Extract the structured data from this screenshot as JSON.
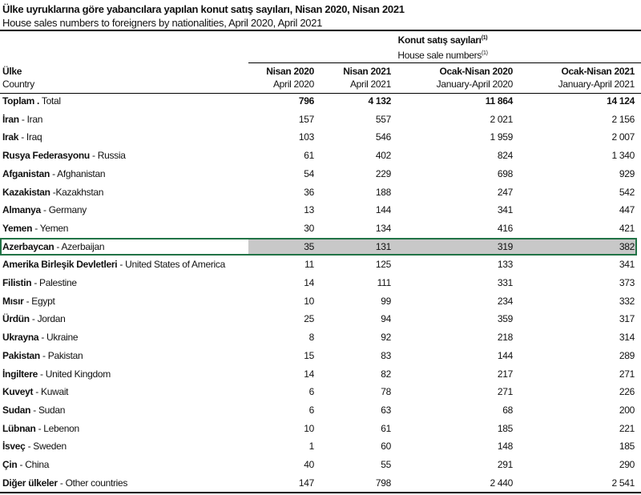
{
  "title": "Ülke uyruklarına göre yabancılara yapılan konut satış sayıları, Nisan 2020, Nisan 2021",
  "subtitle": "House sales numbers to foreigners by nationalities, April 2020, April 2021",
  "group_header": {
    "tr": "Konut satış sayıları",
    "en": "House sale numbers",
    "note": "(1)"
  },
  "columns": [
    {
      "tr": "Ülke",
      "en": "Country"
    },
    {
      "tr": "Nisan 2020",
      "en": "April 2020"
    },
    {
      "tr": "Nisan 2021",
      "en": "April 2021"
    },
    {
      "tr": "Ocak-Nisan 2020",
      "en": "January-April 2020"
    },
    {
      "tr": "Ocak-Nisan 2021",
      "en": "January-April 2021"
    }
  ],
  "selection_color": "#217346",
  "rows": [
    {
      "tr": "Toplam .",
      "en": "Total",
      "v": [
        "796",
        "4 132",
        "11 864",
        "14 124"
      ]
    },
    {
      "tr": "İran",
      "en": "- Iran",
      "v": [
        "157",
        "557",
        "2 021",
        "2 156"
      ]
    },
    {
      "tr": "Irak",
      "en": "- Iraq",
      "v": [
        "103",
        "546",
        "1 959",
        "2 007"
      ]
    },
    {
      "tr": "Rusya Federasyonu",
      "en": "- Russia",
      "v": [
        "61",
        "402",
        "824",
        "1 340"
      ]
    },
    {
      "tr": "Afganistan",
      "en": "- Afghanistan",
      "v": [
        "54",
        "229",
        "698",
        "929"
      ]
    },
    {
      "tr": "Kazakistan",
      "en": "-Kazakhstan",
      "v": [
        "36",
        "188",
        "247",
        "542"
      ]
    },
    {
      "tr": "Almanya",
      "en": "- Germany",
      "v": [
        "13",
        "144",
        "341",
        "447"
      ]
    },
    {
      "tr": "Yemen",
      "en": "- Yemen",
      "v": [
        "30",
        "134",
        "416",
        "421"
      ]
    },
    {
      "tr": "Azerbaycan",
      "en": "- Azerbaijan",
      "v": [
        "35",
        "131",
        "319",
        "382"
      ],
      "selected": true
    },
    {
      "tr": "Amerika Birleşik Devletleri",
      "en": "- United States of America",
      "v": [
        "11",
        "125",
        "133",
        "341"
      ]
    },
    {
      "tr": "Filistin",
      "en": "- Palestine",
      "v": [
        "14",
        "111",
        "331",
        "373"
      ]
    },
    {
      "tr": "Mısır",
      "en": "- Egypt",
      "v": [
        "10",
        "99",
        "234",
        "332"
      ]
    },
    {
      "tr": "Ürdün",
      "en": "- Jordan",
      "v": [
        "25",
        "94",
        "359",
        "317"
      ]
    },
    {
      "tr": "Ukrayna",
      "en": "- Ukraine",
      "v": [
        "8",
        "92",
        "218",
        "314"
      ]
    },
    {
      "tr": "Pakistan",
      "en": "- Pakistan",
      "v": [
        "15",
        "83",
        "144",
        "289"
      ]
    },
    {
      "tr": "İngiltere",
      "en": "- United Kingdom",
      "v": [
        "14",
        "82",
        "217",
        "271"
      ]
    },
    {
      "tr": "Kuveyt",
      "en": "- Kuwait",
      "v": [
        "6",
        "78",
        "271",
        "226"
      ]
    },
    {
      "tr": "Sudan",
      "en": "- Sudan",
      "v": [
        "6",
        "63",
        "68",
        "200"
      ]
    },
    {
      "tr": "Lübnan",
      "en": "- Lebenon",
      "v": [
        "10",
        "61",
        "185",
        "221"
      ]
    },
    {
      "tr": "İsveç",
      "en": "- Sweden",
      "v": [
        "1",
        "60",
        "148",
        "185"
      ]
    },
    {
      "tr": "Çin",
      "en": "- China",
      "v": [
        "40",
        "55",
        "291",
        "290"
      ]
    },
    {
      "tr": "Diğer ülkeler",
      "en": "- Other countries",
      "v": [
        "147",
        "798",
        "2 440",
        "2 541"
      ]
    }
  ]
}
